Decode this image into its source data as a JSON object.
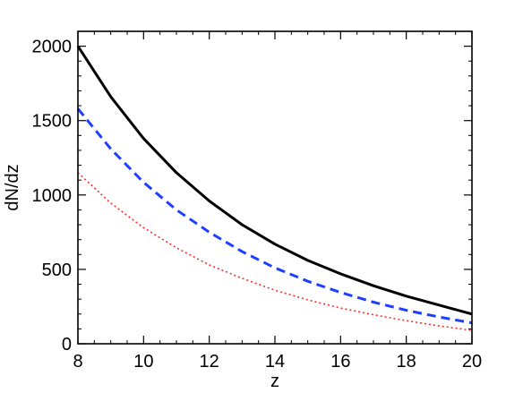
{
  "chart_data": {
    "type": "line",
    "xlabel": "z",
    "ylabel": "dN/dz",
    "xlim": [
      8,
      20
    ],
    "ylim": [
      0,
      2100
    ],
    "x_ticks": [
      8,
      10,
      12,
      14,
      16,
      18,
      20
    ],
    "y_ticks": [
      0,
      500,
      1000,
      1500,
      2000
    ],
    "grid": false,
    "x": [
      8,
      9,
      10,
      11,
      12,
      13,
      14,
      15,
      16,
      17,
      18,
      19,
      20
    ],
    "series": [
      {
        "color": "#000000",
        "style": "solid",
        "values": [
          2000,
          1660,
          1380,
          1150,
          960,
          800,
          670,
          560,
          470,
          390,
          320,
          260,
          200
        ]
      },
      {
        "color": "#1f3fff",
        "style": "dashed",
        "values": [
          1580,
          1310,
          1085,
          900,
          750,
          620,
          510,
          420,
          345,
          280,
          225,
          180,
          140
        ]
      },
      {
        "color": "#ff2a2a",
        "style": "dotted",
        "values": [
          1150,
          945,
          780,
          645,
          530,
          440,
          360,
          295,
          240,
          195,
          155,
          120,
          90
        ]
      }
    ]
  }
}
